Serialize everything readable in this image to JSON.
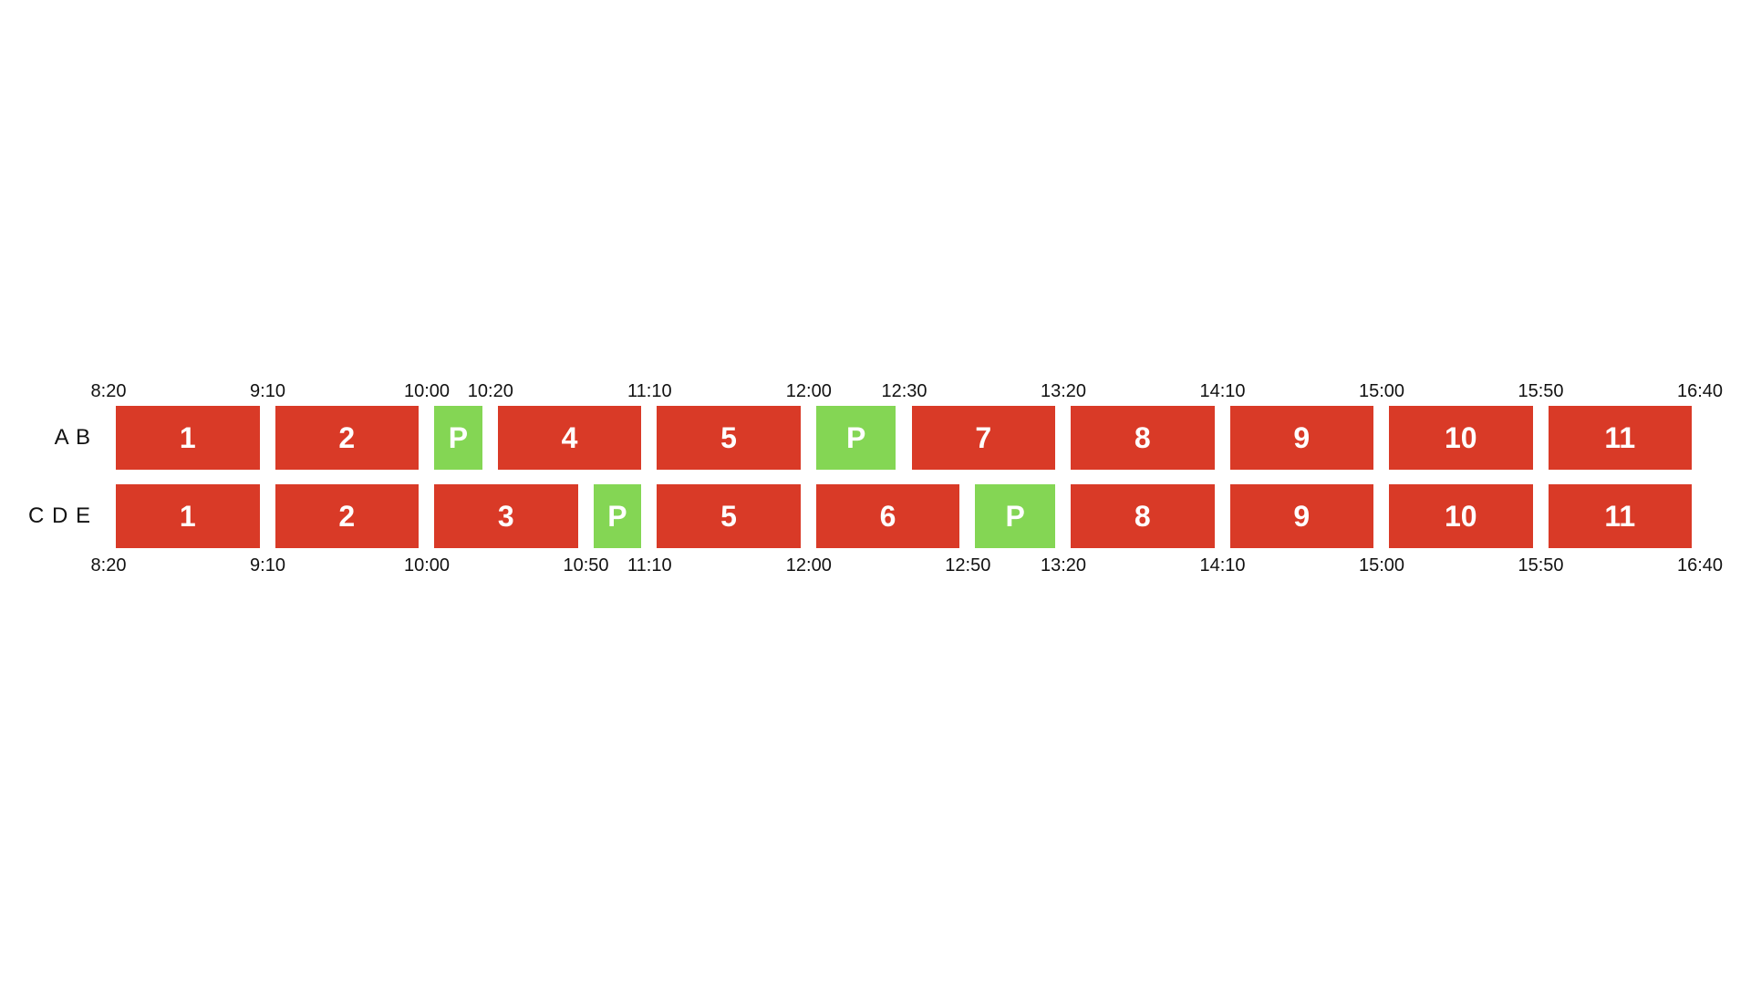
{
  "colors": {
    "lesson": "#d93a27",
    "break": "#84d654"
  },
  "rows": [
    {
      "label": "A B",
      "times": [
        "8:20",
        "9:10",
        "10:00",
        "10:20",
        "11:10",
        "12:00",
        "12:30",
        "13:20",
        "14:10",
        "15:00",
        "15:50",
        "16:40"
      ],
      "blocks": [
        {
          "label": "1",
          "kind": "lesson",
          "start": "8:20",
          "end": "9:10"
        },
        {
          "label": "2",
          "kind": "lesson",
          "start": "9:10",
          "end": "10:00"
        },
        {
          "label": "P",
          "kind": "break",
          "start": "10:00",
          "end": "10:20"
        },
        {
          "label": "4",
          "kind": "lesson",
          "start": "10:20",
          "end": "11:10"
        },
        {
          "label": "5",
          "kind": "lesson",
          "start": "11:10",
          "end": "12:00"
        },
        {
          "label": "P",
          "kind": "break",
          "start": "12:00",
          "end": "12:30"
        },
        {
          "label": "7",
          "kind": "lesson",
          "start": "12:30",
          "end": "13:20"
        },
        {
          "label": "8",
          "kind": "lesson",
          "start": "13:20",
          "end": "14:10"
        },
        {
          "label": "9",
          "kind": "lesson",
          "start": "14:10",
          "end": "15:00"
        },
        {
          "label": "10",
          "kind": "lesson",
          "start": "15:00",
          "end": "15:50"
        },
        {
          "label": "11",
          "kind": "lesson",
          "start": "15:50",
          "end": "16:40"
        }
      ]
    },
    {
      "label": "C D E",
      "times": [
        "8:20",
        "9:10",
        "10:00",
        "10:50",
        "11:10",
        "12:00",
        "12:50",
        "13:20",
        "14:10",
        "15:00",
        "15:50",
        "16:40"
      ],
      "blocks": [
        {
          "label": "1",
          "kind": "lesson",
          "start": "8:20",
          "end": "9:10"
        },
        {
          "label": "2",
          "kind": "lesson",
          "start": "9:10",
          "end": "10:00"
        },
        {
          "label": "3",
          "kind": "lesson",
          "start": "10:00",
          "end": "10:50"
        },
        {
          "label": "P",
          "kind": "break",
          "start": "10:50",
          "end": "11:10"
        },
        {
          "label": "5",
          "kind": "lesson",
          "start": "11:10",
          "end": "12:00"
        },
        {
          "label": "6",
          "kind": "lesson",
          "start": "12:00",
          "end": "12:50"
        },
        {
          "label": "P",
          "kind": "break",
          "start": "12:50",
          "end": "13:20"
        },
        {
          "label": "8",
          "kind": "lesson",
          "start": "13:20",
          "end": "14:10"
        },
        {
          "label": "9",
          "kind": "lesson",
          "start": "14:10",
          "end": "15:00"
        },
        {
          "label": "10",
          "kind": "lesson",
          "start": "15:00",
          "end": "15:50"
        },
        {
          "label": "11",
          "kind": "lesson",
          "start": "15:50",
          "end": "16:40"
        }
      ]
    }
  ]
}
